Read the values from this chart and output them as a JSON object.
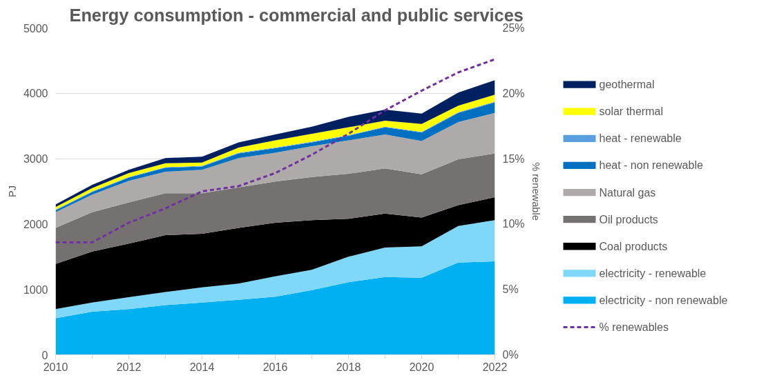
{
  "chart_data": {
    "type": "area",
    "stacked": true,
    "title": "Energy consumption - commercial and public services",
    "ylabel": "PJ",
    "y2label": "% renewable",
    "x": [
      2010,
      2011,
      2012,
      2013,
      2014,
      2015,
      2016,
      2017,
      2018,
      2019,
      2020,
      2021,
      2022
    ],
    "xlim": [
      2010,
      2022
    ],
    "xticks": [
      2010,
      {
        "value": 2011,
        "label": null
      },
      2012,
      {
        "value": 2013,
        "label": null
      },
      2014,
      {
        "value": 2015,
        "label": null
      },
      2016,
      {
        "value": 2017,
        "label": null
      },
      2018,
      {
        "value": 2019,
        "label": null
      },
      2020,
      {
        "value": 2021,
        "label": null
      },
      2022
    ],
    "ylim": [
      0,
      5000
    ],
    "yticks": [
      0,
      1000,
      2000,
      3000,
      4000,
      5000
    ],
    "y2lim": [
      0,
      25
    ],
    "y2ticks": [
      {
        "value": 0,
        "label": "0%"
      },
      {
        "value": 5,
        "label": "5%"
      },
      {
        "value": 10,
        "label": "10%"
      },
      {
        "value": 15,
        "label": "15%"
      },
      {
        "value": 20,
        "label": "20%"
      },
      {
        "value": 25,
        "label": "25%"
      }
    ],
    "grid": "y",
    "legend": "right",
    "series": [
      {
        "name": "electricity - non renewable",
        "color": "#00b0f0",
        "values": [
          560,
          660,
          700,
          760,
          800,
          840,
          890,
          990,
          1110,
          1190,
          1180,
          1410,
          1430
        ]
      },
      {
        "name": "electricity - renewable",
        "color": "#80d8f8",
        "values": [
          140,
          140,
          180,
          200,
          230,
          250,
          310,
          310,
          390,
          450,
          480,
          560,
          630
        ]
      },
      {
        "name": "Coal products",
        "color": "#000000",
        "values": [
          690,
          780,
          820,
          870,
          820,
          850,
          820,
          760,
          580,
          520,
          440,
          320,
          350
        ]
      },
      {
        "name": "Oil products",
        "color": "#767171",
        "values": [
          550,
          600,
          630,
          640,
          620,
          620,
          630,
          660,
          690,
          690,
          660,
          700,
          670
        ]
      },
      {
        "name": "Natural gas",
        "color": "#aeaaaa",
        "values": [
          240,
          270,
          330,
          330,
          360,
          450,
          440,
          470,
          510,
          520,
          510,
          570,
          620
        ]
      },
      {
        "name": "heat - non renewable",
        "color": "#0070c0",
        "values": [
          30,
          40,
          50,
          60,
          50,
          70,
          70,
          60,
          70,
          110,
          130,
          140,
          160
        ]
      },
      {
        "name": "heat - renewable",
        "color": "#5aa0e0",
        "values": [
          10,
          10,
          10,
          10,
          10,
          10,
          10,
          10,
          10,
          10,
          10,
          10,
          10
        ]
      },
      {
        "name": "solar thermal",
        "color": "#ffff00",
        "values": [
          40,
          50,
          60,
          60,
          50,
          80,
          110,
          120,
          120,
          90,
          120,
          100,
          110
        ]
      },
      {
        "name": "geothermal",
        "color": "#002060",
        "values": [
          40,
          50,
          50,
          80,
          90,
          80,
          90,
          110,
          160,
          170,
          160,
          200,
          220
        ]
      },
      {
        "name": "% renewables",
        "type": "line",
        "axis": "y2",
        "color": "#7030a0",
        "line_style": "dashed",
        "values": [
          8.6,
          8.6,
          10.1,
          11.2,
          12.5,
          12.9,
          13.9,
          15.3,
          16.9,
          18.7,
          20.2,
          21.6,
          22.6
        ]
      }
    ]
  }
}
